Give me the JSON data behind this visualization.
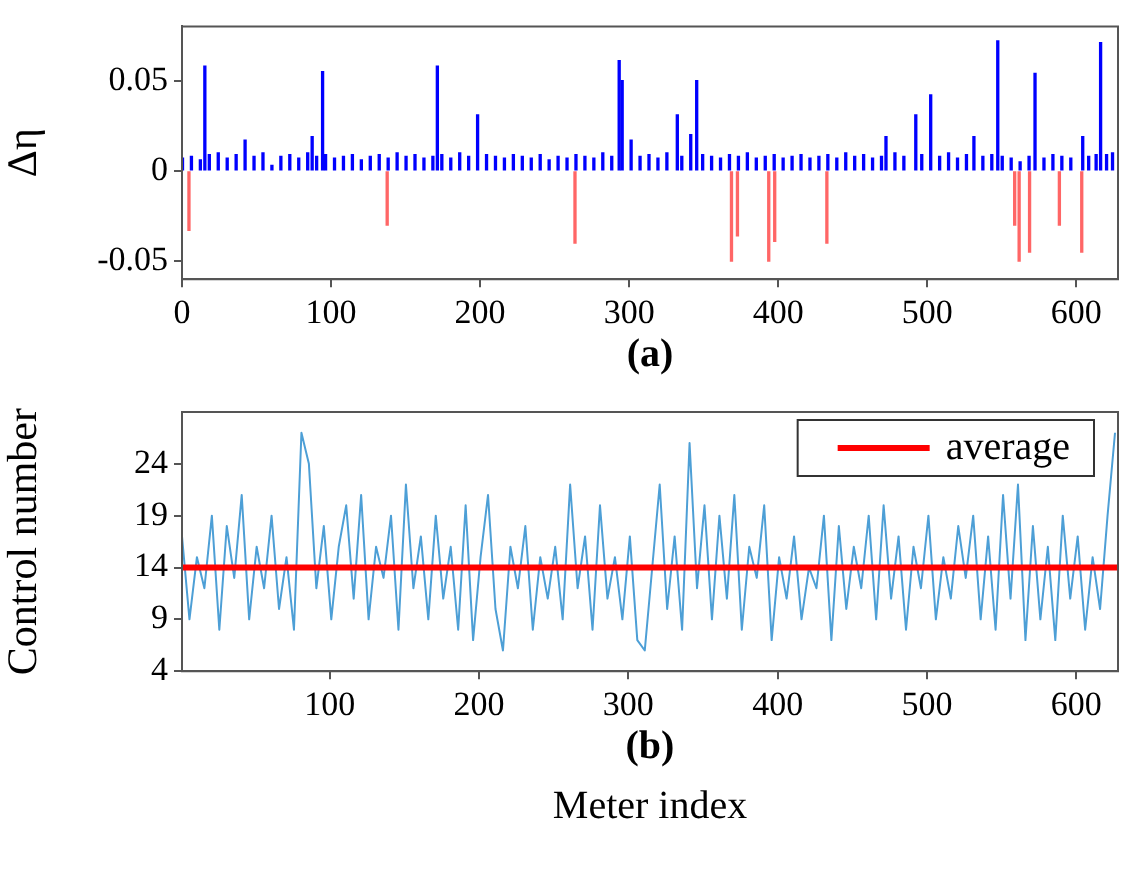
{
  "chart_data": [
    {
      "type": "bar",
      "title": "(a)",
      "ylabel": "Δη",
      "xlim": [
        0,
        628
      ],
      "xticks": [
        0,
        100,
        200,
        300,
        400,
        500,
        600
      ],
      "ylim": [
        -0.06,
        0.08
      ],
      "yticks": [
        -0.05,
        0,
        0.05
      ],
      "grid": false,
      "legend": false,
      "series": [
        {
          "color": "#0000ff",
          "x": [
            1,
            7,
            13,
            16,
            19,
            25,
            31,
            37,
            43,
            49,
            55,
            61,
            67,
            73,
            79,
            85,
            88,
            91,
            95,
            97,
            103,
            109,
            115,
            121,
            127,
            133,
            139,
            145,
            151,
            157,
            163,
            169,
            172,
            175,
            181,
            187,
            193,
            199,
            205,
            211,
            217,
            223,
            229,
            235,
            241,
            247,
            253,
            259,
            265,
            271,
            277,
            283,
            289,
            294,
            296,
            302,
            308,
            314,
            320,
            326,
            333,
            336,
            342,
            346,
            350,
            356,
            362,
            368,
            374,
            380,
            386,
            392,
            398,
            404,
            410,
            416,
            422,
            428,
            434,
            440,
            446,
            452,
            458,
            464,
            470,
            473,
            479,
            485,
            493,
            497,
            503,
            509,
            515,
            521,
            527,
            532,
            538,
            544,
            548,
            551,
            557,
            563,
            569,
            573,
            579,
            585,
            591,
            597,
            605,
            609,
            614,
            617,
            621,
            625
          ],
          "values": [
            0.007,
            0.008,
            0.006,
            0.058,
            0.009,
            0.01,
            0.007,
            0.009,
            0.017,
            0.008,
            0.01,
            0.003,
            0.008,
            0.009,
            0.007,
            0.01,
            0.019,
            0.008,
            0.055,
            0.009,
            0.007,
            0.008,
            0.009,
            0.006,
            0.008,
            0.009,
            0.007,
            0.01,
            0.008,
            0.009,
            0.007,
            0.008,
            0.058,
            0.009,
            0.007,
            0.01,
            0.008,
            0.031,
            0.009,
            0.008,
            0.007,
            0.009,
            0.008,
            0.007,
            0.009,
            0.006,
            0.008,
            0.007,
            0.009,
            0.008,
            0.007,
            0.01,
            0.008,
            0.061,
            0.05,
            0.017,
            0.008,
            0.009,
            0.007,
            0.01,
            0.031,
            0.008,
            0.02,
            0.05,
            0.009,
            0.008,
            0.007,
            0.009,
            0.008,
            0.01,
            0.007,
            0.008,
            0.009,
            0.007,
            0.008,
            0.009,
            0.007,
            0.008,
            0.009,
            0.007,
            0.01,
            0.008,
            0.009,
            0.007,
            0.008,
            0.019,
            0.01,
            0.008,
            0.031,
            0.009,
            0.042,
            0.008,
            0.01,
            0.007,
            0.009,
            0.019,
            0.008,
            0.009,
            0.072,
            0.008,
            0.007,
            0.005,
            0.008,
            0.054,
            0.007,
            0.009,
            0.008,
            0.007,
            0.019,
            0.008,
            0.009,
            0.071,
            0.009,
            0.01
          ]
        },
        {
          "color": "#ff6666",
          "x": [
            4,
            137,
            263,
            368,
            372,
            393,
            397,
            432,
            558,
            561,
            568,
            588,
            603
          ],
          "values": [
            -0.033,
            -0.03,
            -0.04,
            -0.05,
            -0.036,
            -0.05,
            -0.039,
            -0.04,
            -0.03,
            -0.05,
            -0.045,
            -0.03,
            -0.045
          ]
        }
      ]
    },
    {
      "type": "line",
      "title": "(b)",
      "xlabel": "Meter index",
      "ylabel": "Control number",
      "xlim": [
        1,
        628
      ],
      "xticks": [
        100,
        200,
        300,
        400,
        500,
        600
      ],
      "ylim": [
        4,
        29
      ],
      "yticks": [
        4,
        9,
        14,
        19,
        24
      ],
      "grid": false,
      "legend": "top right",
      "ref_lines": [
        {
          "axis": "y",
          "value": 14,
          "label": "average",
          "color": "#ff0000"
        }
      ],
      "series": [
        {
          "color": "#4d9fd6",
          "x": [
            1,
            6,
            11,
            16,
            21,
            26,
            31,
            36,
            41,
            46,
            51,
            56,
            61,
            66,
            71,
            76,
            81,
            86,
            91,
            96,
            101,
            106,
            111,
            116,
            121,
            126,
            131,
            136,
            141,
            146,
            151,
            156,
            161,
            166,
            171,
            176,
            181,
            186,
            191,
            196,
            201,
            206,
            211,
            216,
            221,
            226,
            231,
            236,
            241,
            246,
            251,
            256,
            261,
            266,
            271,
            276,
            281,
            286,
            291,
            296,
            301,
            306,
            311,
            316,
            321,
            326,
            331,
            336,
            341,
            346,
            351,
            356,
            361,
            366,
            371,
            376,
            381,
            386,
            391,
            396,
            401,
            406,
            411,
            416,
            421,
            426,
            431,
            436,
            441,
            446,
            451,
            456,
            461,
            466,
            471,
            476,
            481,
            486,
            491,
            496,
            501,
            506,
            511,
            516,
            521,
            526,
            531,
            536,
            541,
            546,
            551,
            556,
            561,
            566,
            571,
            576,
            581,
            586,
            591,
            596,
            601,
            606,
            611,
            616,
            621,
            626
          ],
          "values": [
            17,
            9,
            15,
            12,
            19,
            8,
            18,
            13,
            21,
            9,
            16,
            12,
            19,
            10,
            15,
            8,
            27,
            24,
            12,
            18,
            9,
            16,
            20,
            11,
            21,
            9,
            16,
            13,
            19,
            8,
            22,
            12,
            17,
            9,
            19,
            11,
            16,
            8,
            20,
            7,
            15,
            21,
            10,
            6,
            16,
            12,
            18,
            8,
            15,
            11,
            16,
            9,
            22,
            12,
            17,
            8,
            20,
            11,
            15,
            9,
            17,
            7,
            6,
            14,
            22,
            10,
            17,
            8,
            26,
            12,
            20,
            9,
            19,
            11,
            21,
            8,
            16,
            13,
            20,
            7,
            15,
            11,
            17,
            9,
            14,
            12,
            19,
            7,
            18,
            10,
            16,
            12,
            19,
            9,
            20,
            11,
            17,
            8,
            16,
            12,
            19,
            9,
            15,
            11,
            18,
            13,
            19,
            9,
            17,
            8,
            21,
            11,
            22,
            7,
            18,
            9,
            16,
            7,
            19,
            11,
            17,
            8,
            15,
            10,
            19,
            27
          ]
        }
      ]
    }
  ]
}
